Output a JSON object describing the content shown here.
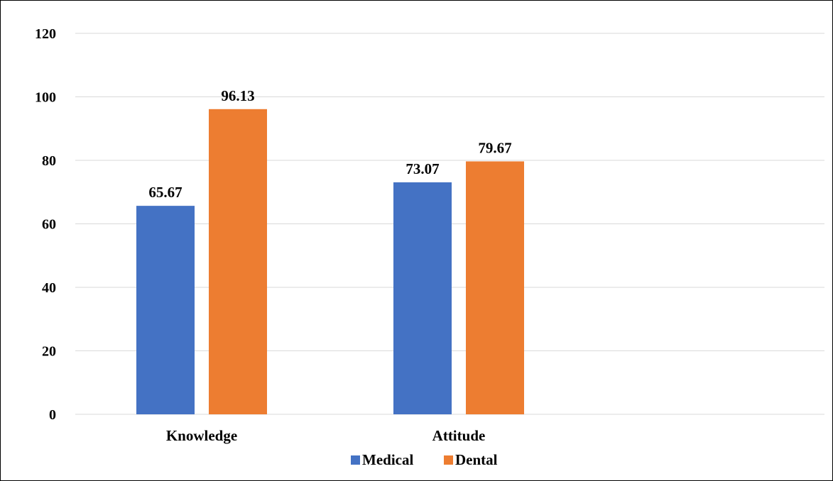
{
  "chart_data": {
    "type": "bar",
    "title": "",
    "xlabel": "",
    "ylabel": "",
    "categories": [
      "Knowledge",
      "Attitude"
    ],
    "series": [
      {
        "name": "Medical",
        "values": [
          65.67,
          73.07
        ],
        "color": "#4472C4"
      },
      {
        "name": "Dental",
        "values": [
          96.13,
          79.67
        ],
        "color": "#ED7D31"
      }
    ],
    "ylim": [
      0,
      120
    ],
    "yticks": [
      0,
      20,
      40,
      60,
      80,
      100,
      120
    ],
    "grid": true,
    "gridline_color": "#D9D9D9",
    "data_labels": true,
    "legend": "bottom-center"
  }
}
